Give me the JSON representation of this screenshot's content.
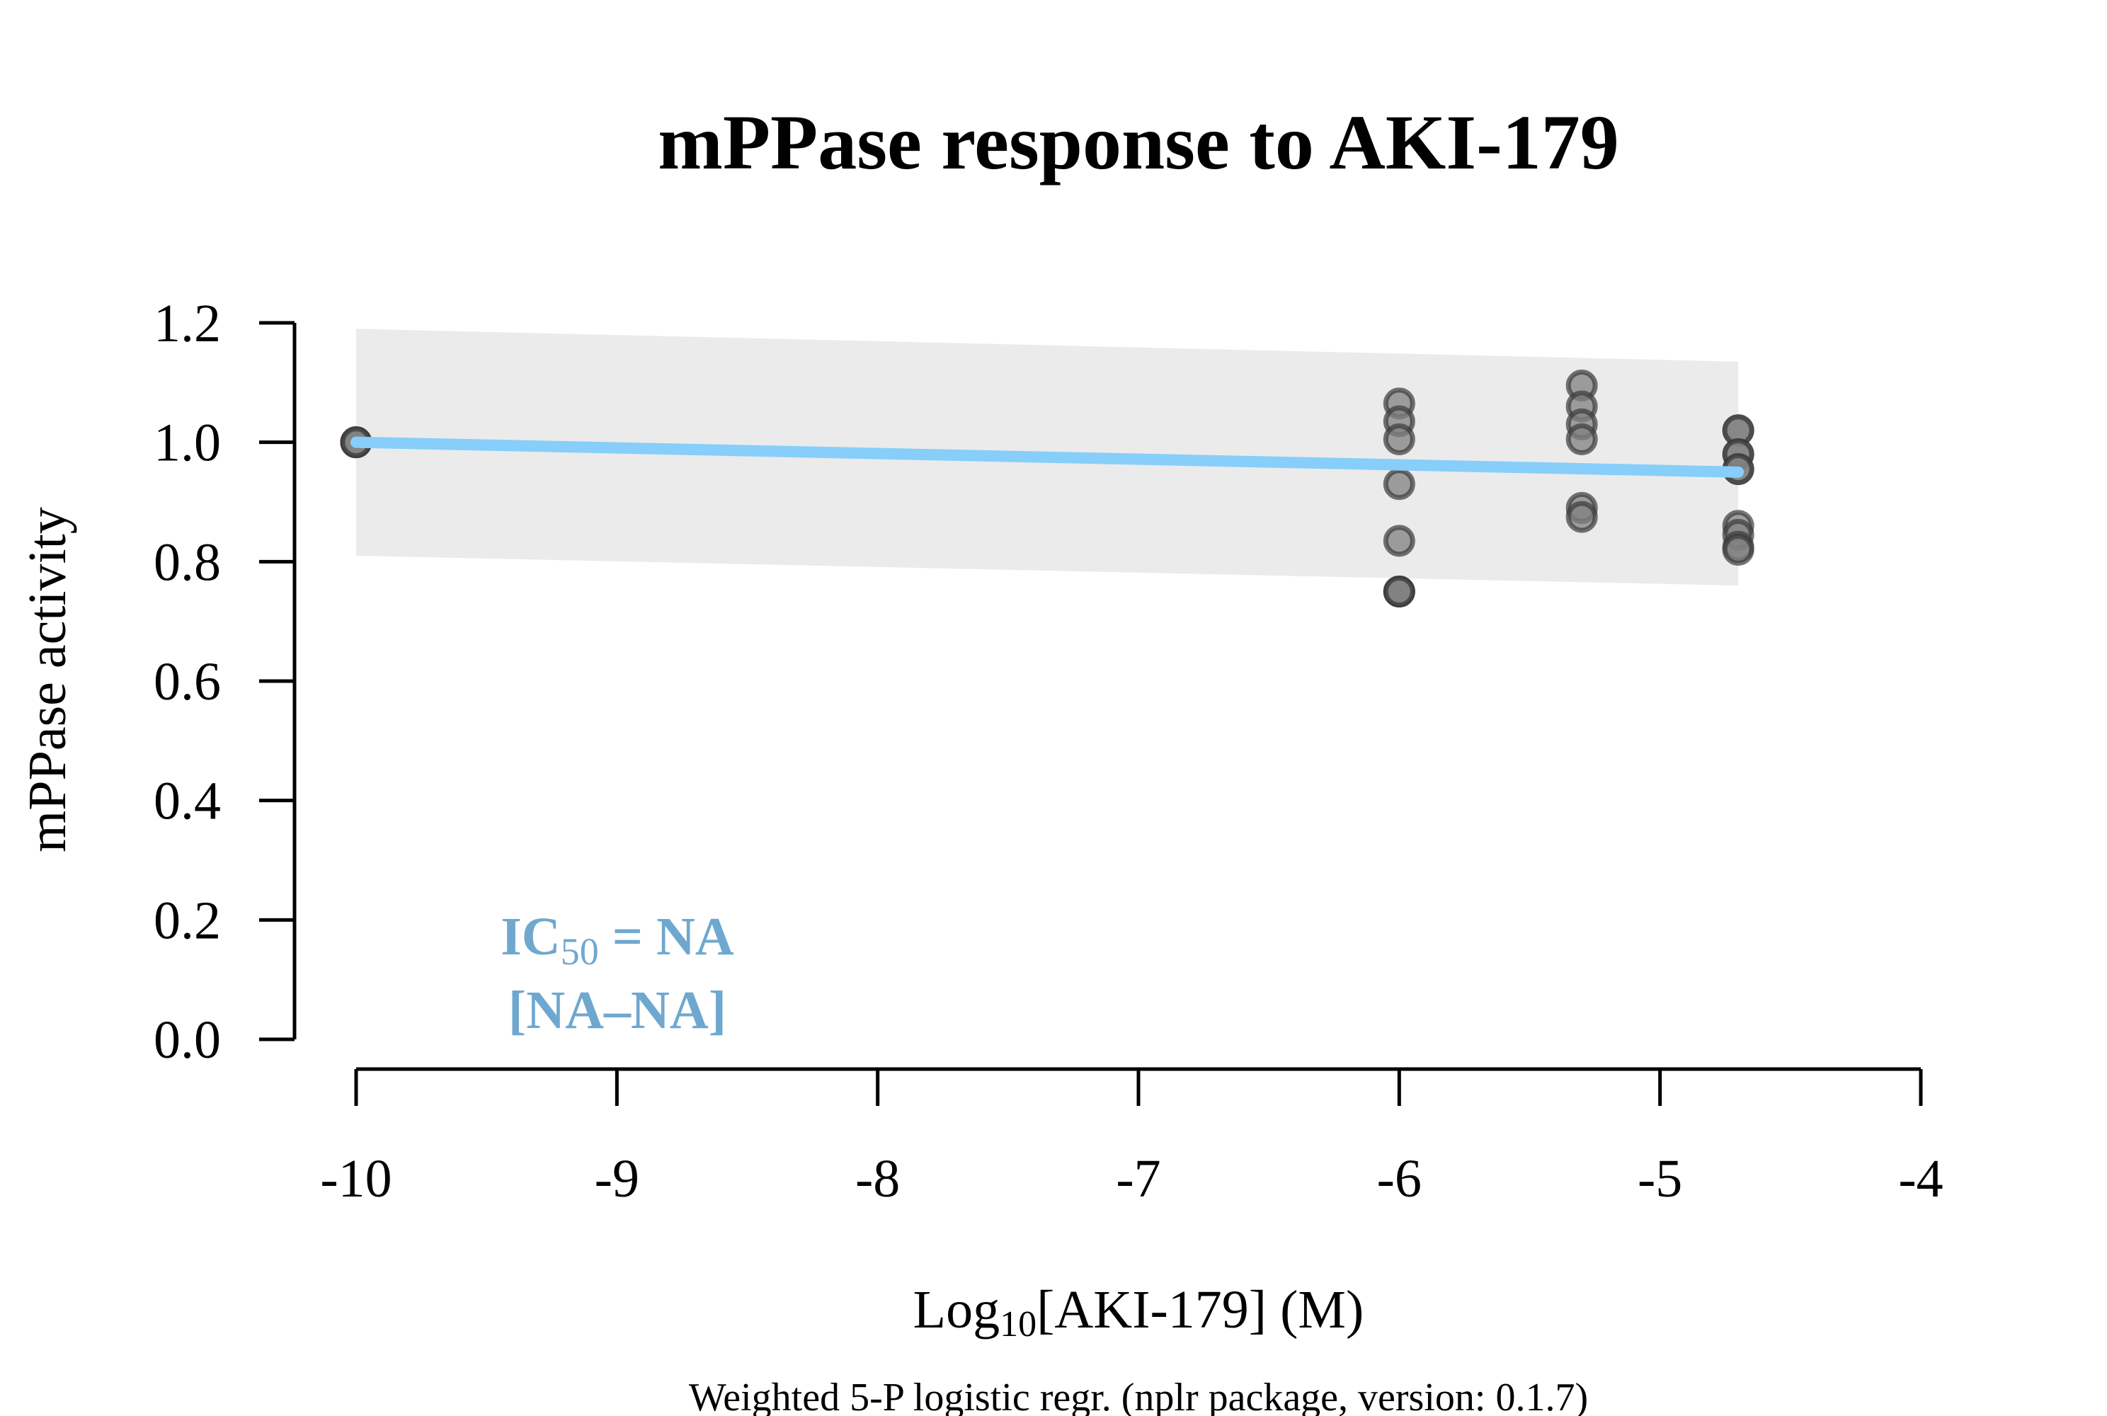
{
  "chart_data": {
    "type": "scatter",
    "title": "mPPase response to AKI-179",
    "xlabel_main": "Log",
    "xlabel_sub": "10",
    "xlabel_rest": "[AKI-179] (M)",
    "ylabel": "mPPase activity",
    "caption": "Weighted 5-P logistic regr. (nplr package, version: 0.1.7)",
    "annotation_line1_main": "IC",
    "annotation_line1_sub": "50",
    "annotation_line1_rest": " = NA",
    "annotation_line2": "[NA–NA]",
    "xlim": [
      -10,
      -4
    ],
    "ylim": [
      0,
      1.2
    ],
    "x_ticks": [
      -10,
      -9,
      -8,
      -7,
      -6,
      -5,
      -4
    ],
    "x_tick_labels": [
      "-10",
      "-9",
      "-8",
      "-7",
      "-6",
      "-5",
      "-4"
    ],
    "y_ticks": [
      0,
      0.2,
      0.4,
      0.6,
      0.8,
      1.0,
      1.2
    ],
    "y_tick_labels": [
      "0.0",
      "0.2",
      "0.4",
      "0.6",
      "0.8",
      "1.0",
      "1.2"
    ],
    "points": [
      {
        "x": -10,
        "y": 1.0
      },
      {
        "x": -10,
        "y": 1.0
      },
      {
        "x": -10,
        "y": 1.0
      },
      {
        "x": -6,
        "y": 1.065
      },
      {
        "x": -6,
        "y": 1.035
      },
      {
        "x": -6,
        "y": 1.005
      },
      {
        "x": -6,
        "y": 0.93
      },
      {
        "x": -6,
        "y": 0.835
      },
      {
        "x": -6,
        "y": 0.75
      },
      {
        "x": -6,
        "y": 0.75
      },
      {
        "x": -6,
        "y": 0.75
      },
      {
        "x": -5.3,
        "y": 1.095
      },
      {
        "x": -5.3,
        "y": 1.06
      },
      {
        "x": -5.3,
        "y": 1.03
      },
      {
        "x": -5.3,
        "y": 1.005
      },
      {
        "x": -5.3,
        "y": 0.89
      },
      {
        "x": -5.3,
        "y": 0.875
      },
      {
        "x": -4.7,
        "y": 1.02
      },
      {
        "x": -4.7,
        "y": 1.02
      },
      {
        "x": -4.7,
        "y": 0.98
      },
      {
        "x": -4.7,
        "y": 0.98
      },
      {
        "x": -4.7,
        "y": 0.955
      },
      {
        "x": -4.7,
        "y": 0.955
      },
      {
        "x": -4.7,
        "y": 0.86
      },
      {
        "x": -4.7,
        "y": 0.845
      },
      {
        "x": -4.7,
        "y": 0.825
      },
      {
        "x": -4.7,
        "y": 0.82
      }
    ],
    "fit_line": {
      "x": [
        -10,
        -4.7
      ],
      "y": [
        1.0,
        0.95
      ]
    },
    "confidence_band": {
      "x": [
        -10,
        -4.7
      ],
      "upper": [
        1.19,
        1.135
      ],
      "lower": [
        0.81,
        0.76
      ]
    },
    "colors": {
      "point_fill": "#808080",
      "point_stroke": "#3a3a3a",
      "fit_line": "#87cefa",
      "band": "#ebebeb",
      "annotation": "#6fa8cf",
      "axis": "#000000"
    }
  }
}
